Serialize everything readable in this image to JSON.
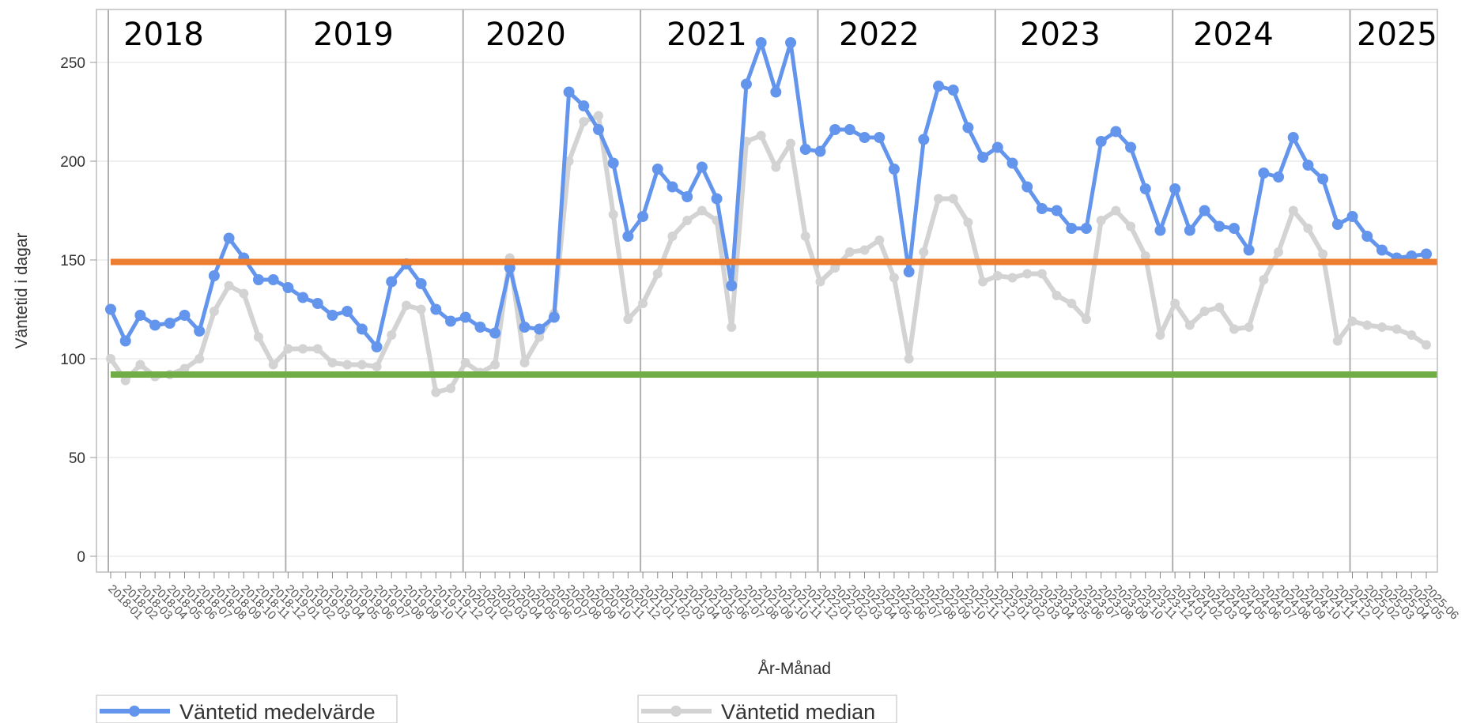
{
  "chart_data": {
    "type": "line",
    "ylabel": "Väntetid i dagar",
    "xlabel": "År-Månad",
    "ylim": [
      0,
      260
    ],
    "yticks": [
      0,
      50,
      100,
      150,
      200,
      250
    ],
    "grid": true,
    "legend_position": "bottom-left",
    "year_labels": [
      "2018",
      "2019",
      "2020",
      "2021",
      "2022",
      "2023",
      "2024",
      "2025"
    ],
    "reference_lines": [
      {
        "value": 149,
        "color": "#ED7D31"
      },
      {
        "value": 92,
        "color": "#70AD47"
      }
    ],
    "x_start_label": "2018-01",
    "x": [
      "2018-01",
      "2018-02",
      "2018-03",
      "2018-04",
      "2018-05",
      "2018-06",
      "2018-07",
      "2018-08",
      "2018-09",
      "2018-10",
      "2018-11",
      "2018-12",
      "2019-01",
      "2019-02",
      "2019-03",
      "2019-04",
      "2019-05",
      "2019-06",
      "2019-07",
      "2019-08",
      "2019-09",
      "2019-10",
      "2019-11",
      "2019-12",
      "2020-01",
      "2020-02",
      "2020-03",
      "2020-04",
      "2020-05",
      "2020-06",
      "2020-07",
      "2020-08",
      "2020-09",
      "2020-10",
      "2020-11",
      "2020-12",
      "2021-01",
      "2021-02",
      "2021-03",
      "2021-04",
      "2021-05",
      "2021-06",
      "2021-07",
      "2021-08",
      "2021-09",
      "2021-10",
      "2021-11",
      "2021-12",
      "2022-01",
      "2022-02",
      "2022-03",
      "2022-04",
      "2022-05",
      "2022-06",
      "2022-07",
      "2022-08",
      "2022-09",
      "2022-10",
      "2022-11",
      "2022-12",
      "2023-01",
      "2023-02",
      "2023-03",
      "2023-04",
      "2023-05",
      "2023-06",
      "2023-07",
      "2023-08",
      "2023-09",
      "2023-10",
      "2023-11",
      "2023-12",
      "2024-01",
      "2024-02",
      "2024-03",
      "2024-04",
      "2024-05",
      "2024-06",
      "2024-07",
      "2024-08",
      "2024-09",
      "2024-10",
      "2024-11",
      "2024-12",
      "2025-01",
      "2025-02",
      "2025-03",
      "2025-04",
      "2025-05",
      "2025-06"
    ],
    "series": [
      {
        "name": "Väntetid medelvärde",
        "color": "#6495ED",
        "values": [
          125,
          109,
          122,
          117,
          118,
          122,
          114,
          142,
          161,
          151,
          140,
          140,
          136,
          131,
          128,
          122,
          124,
          115,
          106,
          139,
          148,
          138,
          125,
          119,
          121,
          116,
          113,
          146,
          116,
          115,
          121,
          235,
          228,
          216,
          199,
          162,
          172,
          196,
          187,
          182,
          197,
          181,
          137,
          239,
          260,
          235,
          260,
          206,
          205,
          216,
          216,
          212,
          212,
          196,
          144,
          211,
          238,
          236,
          217,
          202,
          207,
          199,
          187,
          176,
          175,
          166,
          166,
          210,
          215,
          207,
          186,
          165,
          186,
          165,
          175,
          167,
          166,
          155,
          194,
          192,
          212,
          198,
          191,
          168,
          172,
          162,
          155,
          151,
          152,
          153
        ]
      },
      {
        "name": "Väntetid median",
        "color": "#D3D3D3",
        "values": [
          100,
          89,
          97,
          91,
          92,
          95,
          100,
          124,
          137,
          133,
          111,
          97,
          105,
          105,
          105,
          98,
          97,
          97,
          96,
          112,
          127,
          125,
          83,
          85,
          98,
          93,
          97,
          151,
          98,
          111,
          123,
          200,
          220,
          223,
          173,
          120,
          128,
          143,
          162,
          170,
          175,
          170,
          116,
          210,
          213,
          197,
          209,
          162,
          139,
          146,
          154,
          155,
          160,
          141,
          100,
          154,
          181,
          181,
          169,
          139,
          142,
          141,
          143,
          143,
          132,
          128,
          120,
          170,
          175,
          167,
          152,
          112,
          128,
          117,
          124,
          126,
          115,
          116,
          140,
          154,
          175,
          166,
          153,
          109,
          119,
          117,
          116,
          115,
          112,
          107
        ]
      }
    ]
  }
}
